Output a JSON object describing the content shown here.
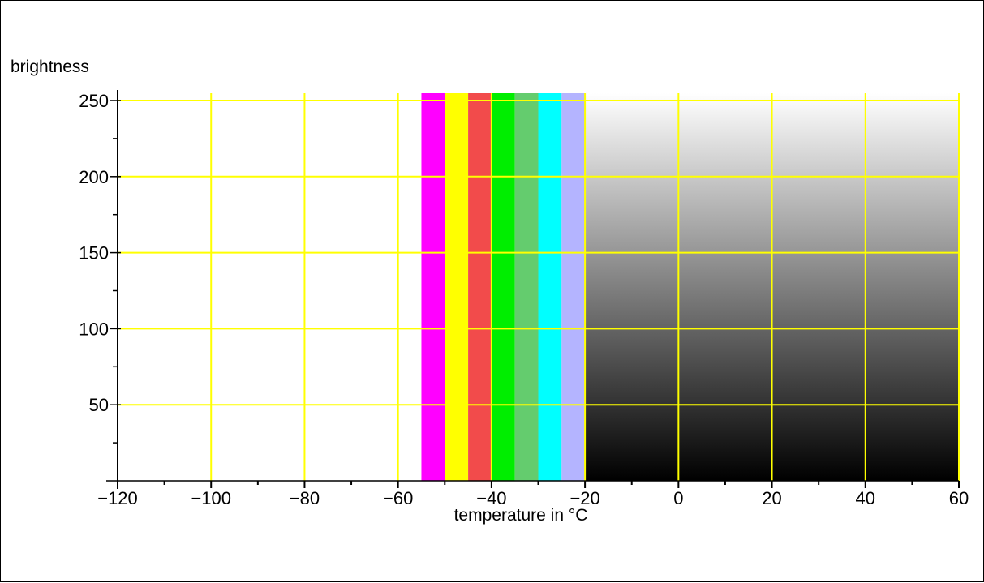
{
  "chart_data": {
    "type": "heatmap",
    "title": "",
    "xlabel": "temperature in °C",
    "ylabel": "brightness",
    "xlim": [
      -120,
      60
    ],
    "ylim": [
      0,
      255
    ],
    "x_ticks": [
      -120,
      -100,
      -80,
      -60,
      -40,
      -20,
      0,
      20,
      40,
      60
    ],
    "x_minor_step": 10,
    "y_ticks": [
      50,
      100,
      150,
      200,
      250
    ],
    "y_minor_step": 25,
    "grid": true,
    "legend": "none",
    "colors": {
      "grid": "#ffff00",
      "axis": "#000000",
      "background": "#ffffff"
    },
    "bands": [
      {
        "x_start": -55,
        "x_end": -50,
        "color": "#ff00ff"
      },
      {
        "x_start": -50,
        "x_end": -45,
        "color": "#ffff00"
      },
      {
        "x_start": -45,
        "x_end": -40,
        "color": "#f24b4b"
      },
      {
        "x_start": -40,
        "x_end": -35,
        "color": "#00ee00"
      },
      {
        "x_start": -35,
        "x_end": -30,
        "color": "#64cc6e"
      },
      {
        "x_start": -30,
        "x_end": -25,
        "color": "#00ffff"
      },
      {
        "x_start": -25,
        "x_end": -20,
        "color": "#b4b4ff"
      }
    ],
    "gradient": {
      "x_start": -20,
      "x_end": 60,
      "y_start": 0,
      "y_end": 255,
      "color_at_y_start": "#000000",
      "color_at_y_end": "#ffffff"
    }
  }
}
